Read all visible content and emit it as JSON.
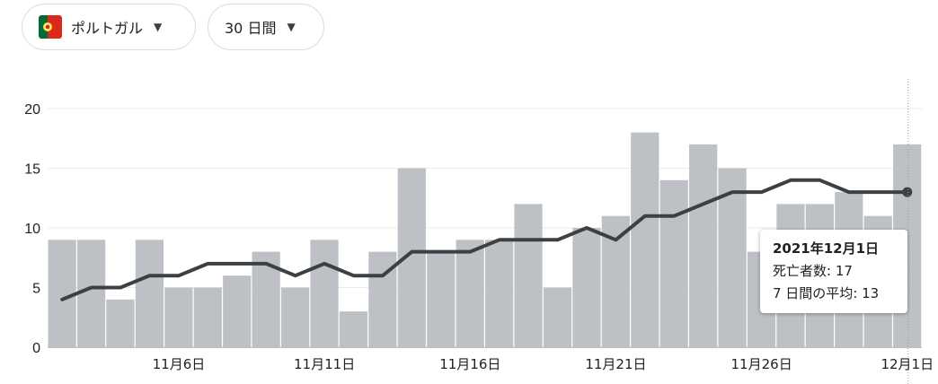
{
  "filters": {
    "country": {
      "label": "ポルトガル",
      "flag_icon": "portugal-flag-icon"
    },
    "range": {
      "label": "30 日間"
    },
    "dropdown_icon": "caret-down-icon"
  },
  "chart_data": {
    "type": "bar",
    "title": "",
    "xlabel": "",
    "ylabel": "",
    "ylim": [
      0,
      20
    ],
    "yticks": [
      0,
      5,
      10,
      15,
      20
    ],
    "categories": [
      "11月2日",
      "11月3日",
      "11月4日",
      "11月5日",
      "11月6日",
      "11月7日",
      "11月8日",
      "11月9日",
      "11月10日",
      "11月11日",
      "11月12日",
      "11月13日",
      "11月14日",
      "11月15日",
      "11月16日",
      "11月17日",
      "11月18日",
      "11月19日",
      "11月20日",
      "11月21日",
      "11月22日",
      "11月23日",
      "11月24日",
      "11月25日",
      "11月26日",
      "11月27日",
      "11月28日",
      "11月29日",
      "11月30日",
      "12月1日"
    ],
    "x_tick_labels": [
      {
        "index": 4,
        "label": "11月6日"
      },
      {
        "index": 9,
        "label": "11月11日"
      },
      {
        "index": 14,
        "label": "11月16日"
      },
      {
        "index": 19,
        "label": "11月21日"
      },
      {
        "index": 24,
        "label": "11月26日"
      },
      {
        "index": 29,
        "label": "12月1日"
      }
    ],
    "series": [
      {
        "name": "死亡者数",
        "type": "bar",
        "color": "#bdc1c6",
        "values": [
          9,
          9,
          4,
          9,
          5,
          5,
          6,
          8,
          5,
          9,
          3,
          8,
          15,
          8,
          9,
          9,
          12,
          5,
          10,
          11,
          18,
          14,
          17,
          15,
          8,
          12,
          12,
          13,
          11,
          17
        ]
      },
      {
        "name": "7 日間の平均",
        "type": "line",
        "color": "#3c4043",
        "values": [
          4,
          5,
          5,
          6,
          6,
          7,
          7,
          7,
          6,
          7,
          6,
          6,
          8,
          8,
          8,
          9,
          9,
          9,
          10,
          9,
          11,
          11,
          12,
          13,
          13,
          14,
          14,
          13,
          13,
          13
        ]
      }
    ],
    "grid": true,
    "legend": "none",
    "tooltip": {
      "date": "2021年12月1日",
      "deaths_label": "死亡者数",
      "deaths_value": "17",
      "avg_label": "7 日間の平均",
      "avg_value": "13"
    }
  }
}
